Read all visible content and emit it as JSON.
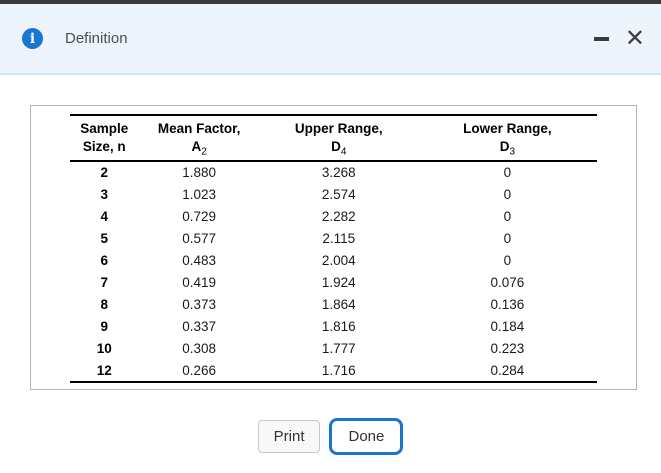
{
  "colors": {
    "accent_blue": "#1b75cf",
    "titlebar_bg": "#edf4fb",
    "titlebar_top_border": "#393939",
    "titlebar_separator": "#cfe3f3",
    "info_icon_bg": "#1976d2",
    "panel_border": "#b3b3b3"
  },
  "dialog": {
    "title": "Definition",
    "icons": {
      "info": "i",
      "minimize": "minus",
      "close": "✕"
    }
  },
  "table": {
    "columns": [
      {
        "line1": "Sample",
        "line2": "Size, n",
        "sub": ""
      },
      {
        "line1": "Mean Factor,",
        "line2": "A",
        "sub": "2"
      },
      {
        "line1": "Upper Range,",
        "line2": "D",
        "sub": "4"
      },
      {
        "line1": "Lower Range,",
        "line2": "D",
        "sub": "3"
      }
    ],
    "cell_names": [
      "sample-size-cell",
      "mean-factor-cell",
      "upper-range-cell",
      "lower-range-cell"
    ],
    "rows": [
      {
        "n": "2",
        "a2": "1.880",
        "d4": "3.268",
        "d3": "0"
      },
      {
        "n": "3",
        "a2": "1.023",
        "d4": "2.574",
        "d3": "0"
      },
      {
        "n": "4",
        "a2": "0.729",
        "d4": "2.282",
        "d3": "0"
      },
      {
        "n": "5",
        "a2": "0.577",
        "d4": "2.115",
        "d3": "0"
      },
      {
        "n": "6",
        "a2": "0.483",
        "d4": "2.004",
        "d3": "0"
      },
      {
        "n": "7",
        "a2": "0.419",
        "d4": "1.924",
        "d3": "0.076"
      },
      {
        "n": "8",
        "a2": "0.373",
        "d4": "1.864",
        "d3": "0.136"
      },
      {
        "n": "9",
        "a2": "0.337",
        "d4": "1.816",
        "d3": "0.184"
      },
      {
        "n": "10",
        "a2": "0.308",
        "d4": "1.777",
        "d3": "0.223"
      },
      {
        "n": "12",
        "a2": "0.266",
        "d4": "1.716",
        "d3": "0.284"
      }
    ]
  },
  "buttons": {
    "print_label": "Print",
    "done_label": "Done"
  }
}
